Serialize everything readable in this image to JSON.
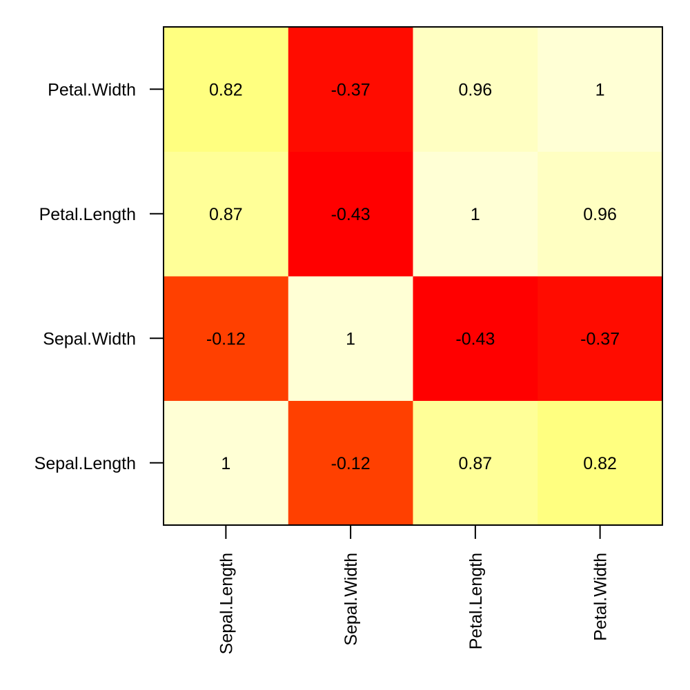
{
  "chart_data": {
    "type": "heatmap",
    "title": "",
    "xlabel": "",
    "ylabel": "",
    "x_categories": [
      "Sepal.Length",
      "Sepal.Width",
      "Petal.Length",
      "Petal.Width"
    ],
    "y_categories": [
      "Sepal.Length",
      "Sepal.Width",
      "Petal.Length",
      "Petal.Width"
    ],
    "values": [
      [
        1,
        -0.12,
        0.87,
        0.82
      ],
      [
        -0.12,
        1,
        -0.43,
        -0.37
      ],
      [
        0.87,
        -0.43,
        1,
        0.96
      ],
      [
        0.82,
        -0.37,
        0.96,
        1
      ]
    ],
    "value_labels": [
      [
        "1",
        "-0.12",
        "0.87",
        "0.82"
      ],
      [
        "-0.12",
        "1",
        "-0.43",
        "-0.37"
      ],
      [
        "0.87",
        "-0.43",
        "1",
        "0.96"
      ],
      [
        "0.82",
        "-0.37",
        "0.96",
        "1"
      ]
    ],
    "color_scale": {
      "palette": "heat",
      "stops": [
        {
          "value": -0.43,
          "color": "#FF0000"
        },
        {
          "value": -0.12,
          "color": "#FF4000"
        },
        {
          "value": 0.82,
          "color": "#FFFF80"
        },
        {
          "value": 1,
          "color": "#FFFFD5"
        }
      ],
      "legend": "none"
    },
    "y_axis_order": "bottom-to-top",
    "grid": false
  }
}
